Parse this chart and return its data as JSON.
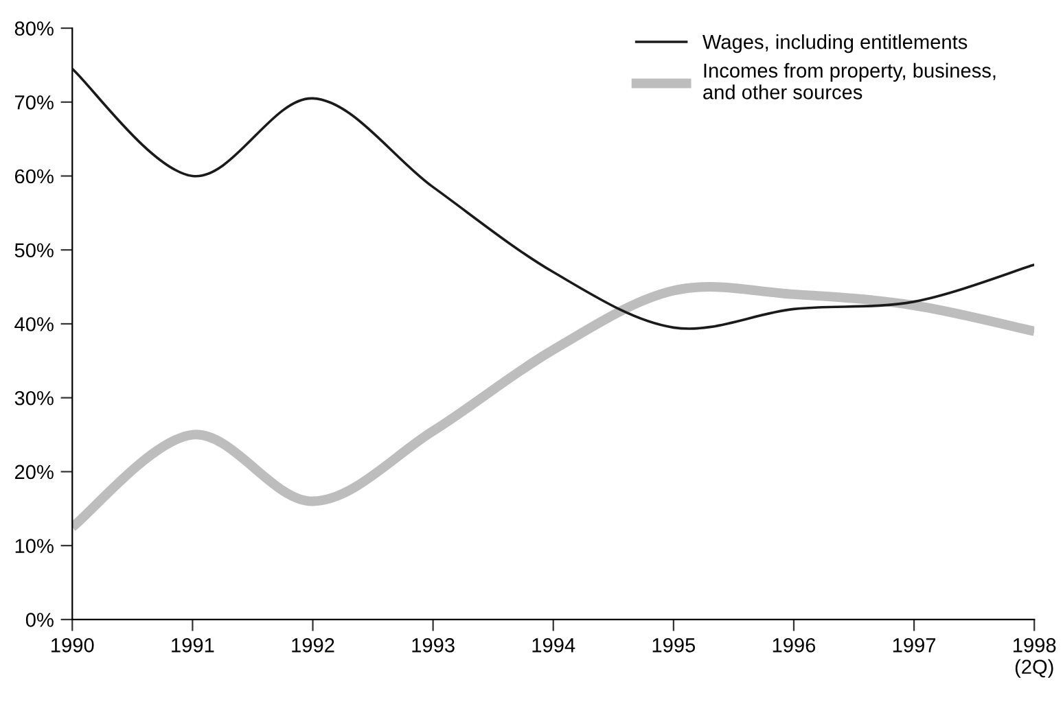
{
  "chart_data": {
    "type": "line",
    "x": [
      1990,
      1991,
      1992,
      1993,
      1994,
      1995,
      1996,
      1997,
      1998
    ],
    "series": [
      {
        "name": "Wages, including entitlements",
        "color": "#1a1a1a",
        "values": [
          74.5,
          60,
          70.5,
          58.5,
          47,
          39.5,
          42,
          43,
          48
        ]
      },
      {
        "name": "Incomes from property, business,\nand other sources",
        "color": "#bdbdbd",
        "values": [
          12.5,
          25,
          16,
          25.5,
          36.5,
          44.5,
          44,
          42.5,
          39
        ]
      }
    ],
    "xlim": [
      1990,
      1998
    ],
    "xticks": [
      1990,
      1991,
      1992,
      1993,
      1994,
      1995,
      1996,
      1997,
      {
        "value": 1998,
        "label": "1998\n(2Q)"
      }
    ],
    "ylim": [
      0,
      80
    ],
    "yticks": [
      {
        "value": 0,
        "label": "0%"
      },
      {
        "value": 10,
        "label": "10%"
      },
      {
        "value": 20,
        "label": "20%"
      },
      {
        "value": 30,
        "label": "30%"
      },
      {
        "value": 40,
        "label": "40%"
      },
      {
        "value": 50,
        "label": "50%"
      },
      {
        "value": 60,
        "label": "60%"
      },
      {
        "value": 70,
        "label": "70%"
      },
      {
        "value": 80,
        "label": "80%"
      }
    ],
    "grid": false,
    "legend": "top right",
    "marker": "none",
    "line_style": "solid"
  }
}
